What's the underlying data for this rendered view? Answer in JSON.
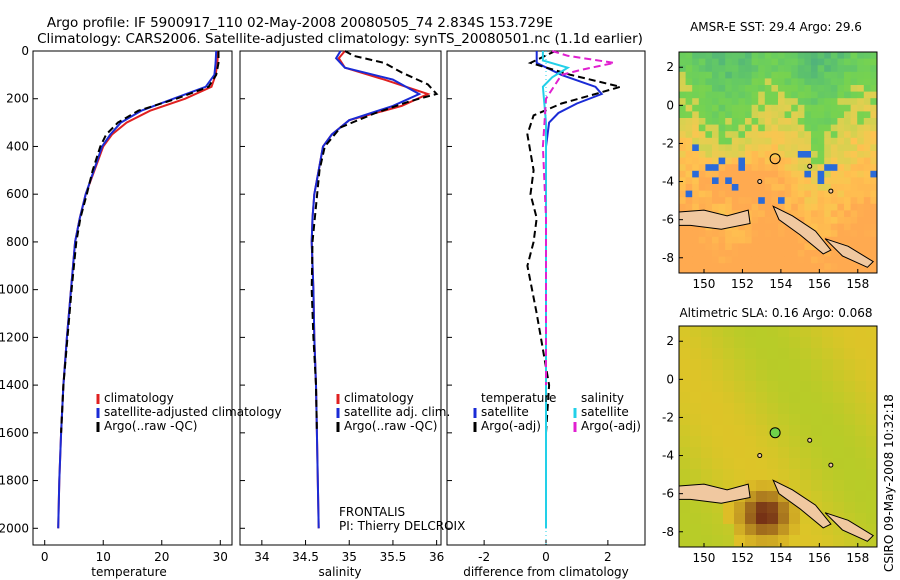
{
  "header": {
    "title_line1": "Argo profile: IF 5900917_110 02-May-2008 20080505_74 2.834S 153.729E",
    "title_line2": "Climatology: CARS2006. Satellite-adjusted climatology: synTS_20080501.nc (1.1d earlier)"
  },
  "side_label": "CSIRO 09-May-2008 10:32:18",
  "colors": {
    "climatology": "#e02020",
    "satellite": "#1a2bd6",
    "argo": "#000000",
    "sal_satellite": "#22d0e8",
    "sal_argo": "#e020d0"
  },
  "depth_ticks": [
    0,
    200,
    400,
    600,
    800,
    1000,
    1200,
    1400,
    1600,
    1800,
    2000
  ],
  "chart_data": [
    {
      "type": "line",
      "xlabel": "temperature",
      "xlim": [
        -2,
        32
      ],
      "xticks": [
        0,
        10,
        20,
        30
      ],
      "ylim": [
        2070,
        0
      ],
      "ylabel": "",
      "legend": [
        "climatology",
        "satellite-adjusted climatology",
        "Argo(..raw -QC)"
      ],
      "series": [
        {
          "name": "climatology",
          "color": "red",
          "style": "solid",
          "x": [
            29.6,
            29.5,
            29.2,
            28.5,
            24.0,
            18.0,
            14.0,
            11.5,
            10.0,
            8.5,
            7.0,
            6.0,
            5.2,
            4.5,
            3.8,
            3.2,
            2.8,
            2.5,
            2.3
          ],
          "y": [
            0,
            50,
            100,
            150,
            200,
            250,
            300,
            350,
            400,
            500,
            600,
            700,
            800,
            1000,
            1200,
            1400,
            1600,
            1800,
            2000
          ]
        },
        {
          "name": "satellite-adjusted climatology",
          "color": "blue",
          "style": "solid",
          "x": [
            29.3,
            29.2,
            29.0,
            27.5,
            22.0,
            16.5,
            13.0,
            11.2,
            9.8,
            8.4,
            7.0,
            6.0,
            5.2,
            4.5,
            3.8,
            3.2,
            2.8,
            2.5,
            2.3
          ],
          "y": [
            0,
            50,
            100,
            150,
            200,
            250,
            300,
            350,
            400,
            500,
            600,
            700,
            800,
            1000,
            1200,
            1400,
            1600,
            1800,
            2000
          ]
        },
        {
          "name": "Argo(..raw -QC)",
          "color": "black",
          "style": "dashed",
          "x": [
            29.7,
            29.7,
            29.3,
            28.0,
            22.5,
            16.0,
            12.5,
            10.5,
            9.5,
            8.2,
            7.2,
            6.1,
            5.4,
            4.6,
            3.9,
            3.2,
            2.8
          ],
          "y": [
            0,
            50,
            100,
            150,
            200,
            250,
            300,
            350,
            400,
            500,
            600,
            700,
            800,
            1000,
            1200,
            1400,
            1600
          ]
        }
      ]
    },
    {
      "type": "line",
      "xlabel": "salinity",
      "xlim": [
        33.75,
        36.05
      ],
      "xticks": [
        34,
        34.5,
        35,
        35.5,
        36
      ],
      "ylim": [
        2070,
        0
      ],
      "legend": [
        "climatology",
        "satellite adj. clim.",
        "Argo(..raw -QC)"
      ],
      "annotation": [
        "FRONTALIS",
        "PI: Thierry DELCROIX"
      ],
      "series": [
        {
          "name": "climatology",
          "color": "red",
          "style": "solid",
          "x": [
            34.95,
            34.88,
            34.95,
            35.4,
            35.9,
            35.6,
            35.0,
            34.8,
            34.7,
            34.65,
            34.6,
            34.58,
            34.57,
            34.59,
            34.6,
            34.62,
            34.63,
            34.64,
            34.65
          ],
          "y": [
            0,
            30,
            70,
            120,
            180,
            230,
            290,
            350,
            400,
            500,
            600,
            700,
            800,
            1000,
            1200,
            1400,
            1600,
            1800,
            2000
          ]
        },
        {
          "name": "satellite adj. clim.",
          "color": "blue",
          "style": "solid",
          "x": [
            34.9,
            34.85,
            34.95,
            35.5,
            35.8,
            35.5,
            35.0,
            34.8,
            34.7,
            34.65,
            34.6,
            34.58,
            34.57,
            34.59,
            34.6,
            34.62,
            34.63,
            34.64,
            34.65
          ],
          "y": [
            0,
            30,
            70,
            120,
            180,
            230,
            290,
            350,
            400,
            500,
            600,
            700,
            800,
            1000,
            1200,
            1400,
            1600,
            1800,
            2000
          ]
        },
        {
          "name": "Argo(..raw -QC)",
          "color": "black",
          "style": "dashed",
          "x": [
            34.95,
            35.05,
            35.4,
            35.6,
            35.9,
            36.0,
            35.7,
            35.3,
            34.9,
            34.72,
            34.66,
            34.62,
            34.58,
            34.57,
            34.59,
            34.62,
            34.63
          ],
          "y": [
            0,
            20,
            50,
            90,
            140,
            180,
            210,
            260,
            320,
            400,
            500,
            650,
            800,
            1000,
            1200,
            1400,
            1600
          ]
        }
      ]
    },
    {
      "type": "line",
      "xlabel": "difference from climatology",
      "xlim": [
        -3.2,
        3.2
      ],
      "xticks": [
        -2,
        0,
        2
      ],
      "ylim": [
        2070,
        0
      ],
      "legend": [
        "temperature",
        "satellite",
        "Argo(-adj)",
        "salinity",
        "satellite",
        "Argo(-adj)"
      ],
      "series": [
        {
          "name": "temperature satellite",
          "color": "blue",
          "style": "solid",
          "x": [
            -0.3,
            -0.3,
            0.5,
            1.6,
            1.8,
            1.0,
            0.4,
            0.1,
            0.0,
            0.0,
            0.0,
            0.0,
            0.0,
            0.0
          ],
          "y": [
            0,
            50,
            100,
            150,
            180,
            220,
            260,
            300,
            400,
            600,
            800,
            1200,
            1600,
            2000
          ]
        },
        {
          "name": "temperature Argo(-adj)",
          "color": "black",
          "style": "dashed",
          "x": [
            0.3,
            -0.5,
            0.8,
            2.4,
            1.6,
            0.5,
            -0.4,
            -0.6,
            -0.4,
            -0.5,
            -0.3,
            -0.4,
            -0.6,
            -0.3,
            0.1,
            0.0
          ],
          "y": [
            0,
            50,
            100,
            150,
            180,
            220,
            270,
            350,
            500,
            600,
            700,
            800,
            900,
            1100,
            1400,
            1600
          ]
        },
        {
          "name": "salinity satellite",
          "color": "cyan",
          "style": "solid",
          "x": [
            -0.1,
            -0.1,
            0.7,
            0.2,
            -0.1,
            0.0,
            0.0,
            0.0,
            0.0,
            0.0
          ],
          "y": [
            0,
            40,
            70,
            110,
            150,
            300,
            600,
            1000,
            1500,
            2000
          ]
        },
        {
          "name": "salinity Argo(-adj)",
          "color": "magenta",
          "style": "dashed",
          "x": [
            0.2,
            0.7,
            2.2,
            1.1,
            0.5,
            0.0,
            -0.05,
            -0.1,
            0.0,
            0.0
          ],
          "y": [
            0,
            20,
            50,
            80,
            100,
            200,
            300,
            400,
            700,
            1400
          ]
        }
      ]
    },
    {
      "type": "heatmap",
      "title": "AMSR-E SST: 29.4 Argo: 29.6",
      "xlim": [
        148.7,
        159.0
      ],
      "ylim": [
        -8.8,
        2.8
      ],
      "xticks": [
        150,
        152,
        154,
        156,
        158
      ],
      "yticks": [
        -8,
        -6,
        -4,
        -2,
        0,
        2
      ],
      "marker": {
        "x": 153.7,
        "y": -2.8
      }
    },
    {
      "type": "heatmap",
      "title": "Altimetric SLA: 0.16 Argo: 0.068",
      "xlim": [
        148.7,
        159.0
      ],
      "ylim": [
        -8.8,
        2.8
      ],
      "xticks": [
        150,
        152,
        154,
        156,
        158
      ],
      "yticks": [
        -8,
        -6,
        -4,
        -2,
        0,
        2
      ],
      "marker": {
        "x": 153.7,
        "y": -2.8
      }
    }
  ]
}
